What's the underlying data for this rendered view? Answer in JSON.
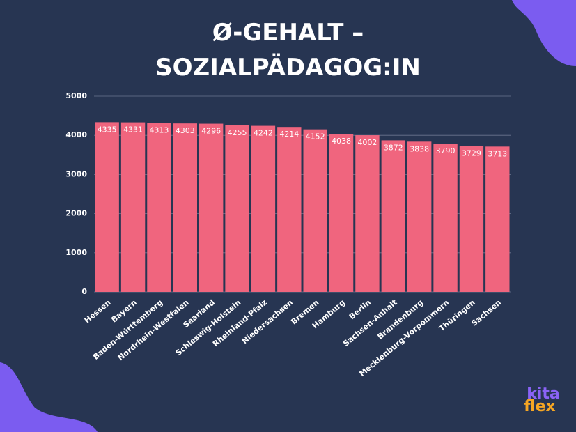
{
  "chart_data": {
    "type": "bar",
    "title": "Ø-GEHALT – SOZIALPÄDAGOG:IN",
    "categories": [
      "Hessen",
      "Bayern",
      "Baden-Württemberg",
      "Nordrhein-Westfalen",
      "Saarland",
      "Schleswig-Holstein",
      "Rheinland-Pfalz",
      "Niedersachsen",
      "Bremen",
      "Hamburg",
      "Berlin",
      "Sachsen-Anhalt",
      "Brandenburg",
      "Mecklenburg-Vorpommern",
      "Thüringen",
      "Sachsen"
    ],
    "values": [
      4335,
      4331,
      4313,
      4303,
      4296,
      4255,
      4242,
      4214,
      4152,
      4038,
      4002,
      3872,
      3838,
      3790,
      3729,
      3713
    ],
    "color": "#f0657e",
    "ylim": [
      0,
      5000
    ],
    "yticks": [
      0,
      1000,
      2000,
      3000,
      4000,
      5000
    ],
    "grid": true
  },
  "logo": {
    "top": "kita",
    "bottom": "flex"
  }
}
